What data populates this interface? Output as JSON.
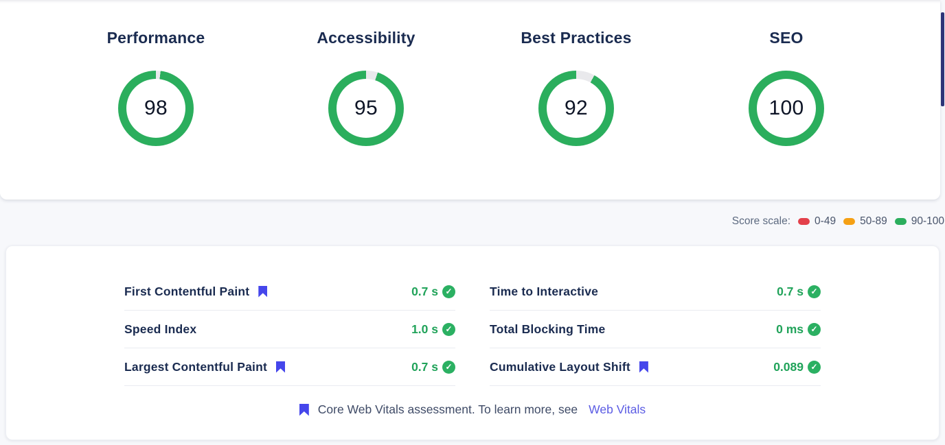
{
  "colors": {
    "pass": "#2bae5d",
    "ring_track": "#e9e9ec",
    "value_green": "#21a35a",
    "check_green": "#2bb062",
    "flag_indigo": "#4546eb",
    "title_navy": "#1a2b50",
    "link_indigo": "#5b5ce4",
    "scrollbar_navy": "#2d3478",
    "legend_red": "#e3404a",
    "legend_orange": "#f5a014",
    "legend_green": "#2bae5d"
  },
  "scores": {
    "items": [
      {
        "label": "Performance",
        "value": 98
      },
      {
        "label": "Accessibility",
        "value": 95
      },
      {
        "label": "Best Practices",
        "value": 92
      },
      {
        "label": "SEO",
        "value": 100
      }
    ]
  },
  "legend": {
    "label": "Score scale:",
    "ranges": [
      {
        "label": "0-49",
        "color": "#e3404a"
      },
      {
        "label": "50-89",
        "color": "#f5a014"
      },
      {
        "label": "90-100",
        "color": "#2bae5d"
      }
    ]
  },
  "metrics": {
    "check_glyph": "✓",
    "columns": [
      {
        "rows": [
          {
            "name": "First Contentful Paint",
            "flagged": true,
            "value": "0.7 s"
          },
          {
            "name": "Speed Index",
            "flagged": false,
            "value": "1.0 s"
          },
          {
            "name": "Largest Contentful Paint",
            "flagged": true,
            "value": "0.7 s"
          }
        ]
      },
      {
        "rows": [
          {
            "name": "Time to Interactive",
            "flagged": false,
            "value": "0.7 s"
          },
          {
            "name": "Total Blocking Time",
            "flagged": false,
            "value": "0 ms"
          },
          {
            "name": "Cumulative Layout Shift",
            "flagged": true,
            "value": "0.089"
          }
        ]
      }
    ]
  },
  "footer": {
    "text": "Core Web Vitals assessment. To learn more, see",
    "link_label": "Web Vitals"
  }
}
